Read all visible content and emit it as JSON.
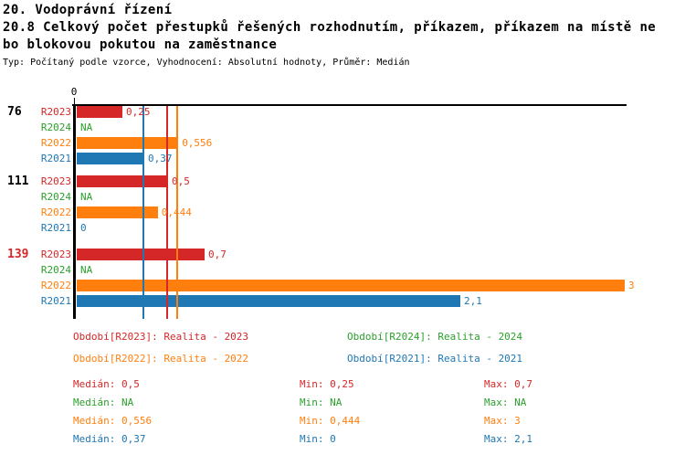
{
  "header": {
    "title_line1": "20. Vodoprávní řízení",
    "title_line2": "20.8 Celkový počet přestupků řešených rozhodnutím, příkazem, příkazem na místě ne",
    "title_line3": "bo blokovou pokutou na zaměstnance",
    "meta_line": "Typ: Počítaný podle vzorce, Vyhodnocení: Absolutní hodnoty, Průměr: Medián"
  },
  "colors": {
    "r2023": "#d62728",
    "r2024": "#2ca02c",
    "r2022": "#ff7f0e",
    "r2021": "#1f77b4",
    "axis": "#000000",
    "group_label_highlight": "#d62728"
  },
  "chart_data": {
    "type": "bar",
    "orientation": "horizontal",
    "x_axis": {
      "origin_tick_label": "0",
      "xlim": [
        0,
        3
      ],
      "grid": false
    },
    "series_order": [
      "R2023",
      "R2024",
      "R2022",
      "R2021"
    ],
    "groups": [
      {
        "label": "76",
        "label_color": "#000000",
        "bars": [
          {
            "series": "R2023",
            "value": 0.25,
            "display": "0,25",
            "color": "#d62728"
          },
          {
            "series": "R2024",
            "value": null,
            "display": "NA",
            "color": "#2ca02c"
          },
          {
            "series": "R2022",
            "value": 0.556,
            "display": "0,556",
            "color": "#ff7f0e"
          },
          {
            "series": "R2021",
            "value": 0.37,
            "display": "0,37",
            "color": "#1f77b4"
          }
        ]
      },
      {
        "label": "111",
        "label_color": "#000000",
        "bars": [
          {
            "series": "R2023",
            "value": 0.5,
            "display": "0,5",
            "color": "#d62728"
          },
          {
            "series": "R2024",
            "value": null,
            "display": "NA",
            "color": "#2ca02c"
          },
          {
            "series": "R2022",
            "value": 0.444,
            "display": "0,444",
            "color": "#ff7f0e"
          },
          {
            "series": "R2021",
            "value": 0,
            "display": "0",
            "color": "#1f77b4"
          }
        ]
      },
      {
        "label": "139",
        "label_color": "#d62728",
        "bars": [
          {
            "series": "R2023",
            "value": 0.7,
            "display": "0,7",
            "color": "#d62728"
          },
          {
            "series": "R2024",
            "value": null,
            "display": "NA",
            "color": "#2ca02c"
          },
          {
            "series": "R2022",
            "value": 3,
            "display": "3",
            "color": "#ff7f0e"
          },
          {
            "series": "R2021",
            "value": 2.1,
            "display": "2,1",
            "color": "#1f77b4"
          }
        ]
      }
    ],
    "median_lines": [
      {
        "series": "R2021",
        "value": 0.37,
        "color": "#1f77b4"
      },
      {
        "series": "R2023",
        "value": 0.5,
        "color": "#d62728"
      },
      {
        "series": "R2022",
        "value": 0.556,
        "color": "#ff7f0e"
      }
    ]
  },
  "legend": {
    "items": [
      {
        "label": "Období[R2023]: Realita - 2023",
        "color": "#d62728"
      },
      {
        "label": "Období[R2024]: Realita - 2024",
        "color": "#2ca02c"
      },
      {
        "label": "Období[R2022]: Realita - 2022",
        "color": "#ff7f0e"
      },
      {
        "label": "Období[R2021]: Realita - 2021",
        "color": "#1f77b4"
      }
    ]
  },
  "stats": {
    "rows": [
      {
        "median": "Medián: 0,5",
        "min": "Min: 0,25",
        "max": "Max: 0,7",
        "color": "#d62728"
      },
      {
        "median": "Medián: NA",
        "min": "Min: NA",
        "max": "Max: NA",
        "color": "#2ca02c"
      },
      {
        "median": "Medián: 0,556",
        "min": "Min: 0,444",
        "max": "Max: 3",
        "color": "#ff7f0e"
      },
      {
        "median": "Medián: 0,37",
        "min": "Min: 0",
        "max": "Max: 2,1",
        "color": "#1f77b4"
      }
    ]
  }
}
